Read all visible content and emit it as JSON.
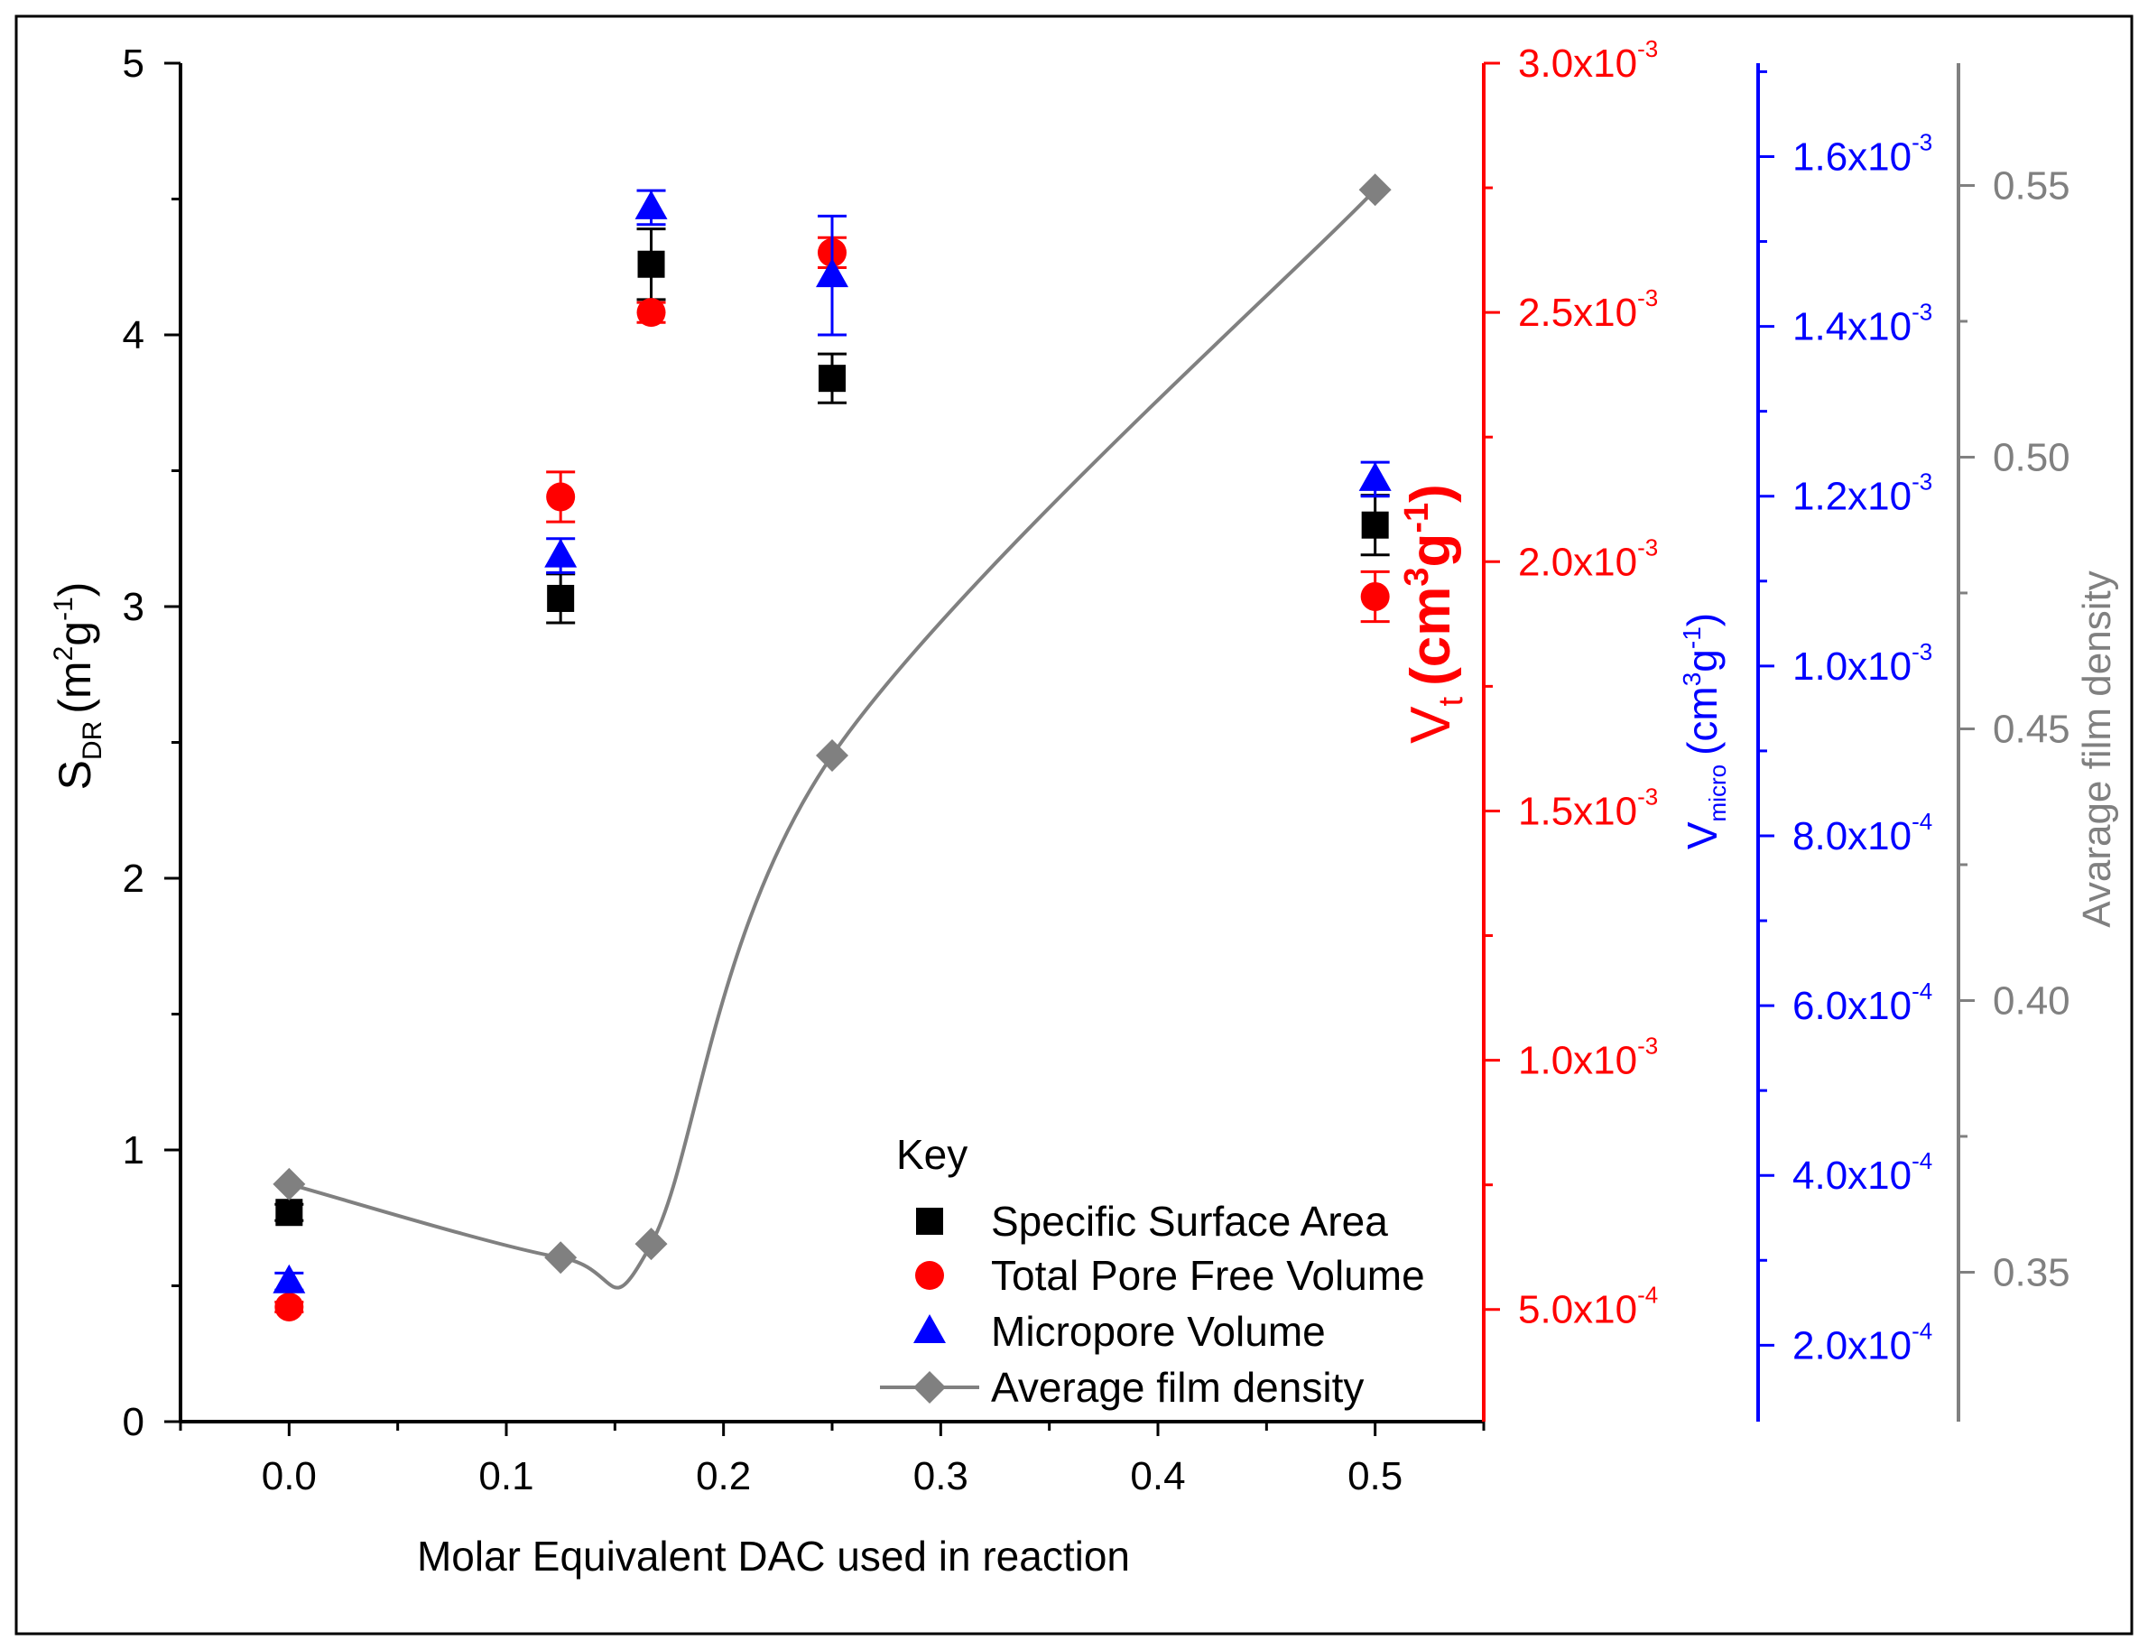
{
  "chart_data": {
    "type": "scatter",
    "title": "",
    "xlabel": "Molar Equivalent DAC used in reaction",
    "xlim": [
      -0.05,
      0.55
    ],
    "x_ticks": [
      0.0,
      0.1,
      0.2,
      0.3,
      0.4,
      0.5
    ],
    "x_tick_labels": [
      "0.0",
      "0.1",
      "0.2",
      "0.3",
      "0.4",
      "0.5"
    ],
    "axes": {
      "left": {
        "label_main": "S",
        "label_sub": "DR",
        "label_paren_open": "(m",
        "label_sup": "2",
        "label_mid": "g",
        "label_sup2": "-1",
        "label_close": ")",
        "ylim": [
          0,
          5
        ],
        "ticks": [
          0,
          1,
          2,
          3,
          4,
          5
        ],
        "tick_labels": [
          "0",
          "1",
          "2",
          "3",
          "4",
          "5"
        ],
        "color": "#000000"
      },
      "right1": {
        "label_main": "V",
        "label_sub": "t",
        "label_paren_open": "(cm",
        "label_sup": "3",
        "label_mid": "g",
        "label_sup2": "-1",
        "label_close": ")",
        "ylim": [
          0.000275,
          0.003
        ],
        "ticks": [
          0.0005,
          0.001,
          0.0015,
          0.002,
          0.0025,
          0.003
        ],
        "tick_labels": [
          {
            "mant": "5.0x10",
            "exp": "-4"
          },
          {
            "mant": "1.0x10",
            "exp": "-3"
          },
          {
            "mant": "1.5x10",
            "exp": "-3"
          },
          {
            "mant": "2.0x10",
            "exp": "-3"
          },
          {
            "mant": "2.5x10",
            "exp": "-3"
          },
          {
            "mant": "3.0x10",
            "exp": "-3"
          }
        ],
        "color": "#ff0000"
      },
      "right2": {
        "label_main": "V",
        "label_sub": "micro",
        "label_paren_open": "(cm",
        "label_sup": "3",
        "label_mid": "g",
        "label_sup2": "-1",
        "label_close": ")",
        "ylim": [
          0.00011,
          0.00171
        ],
        "ticks": [
          0.0002,
          0.0004,
          0.0006,
          0.0008,
          0.001,
          0.0012,
          0.0014,
          0.0016
        ],
        "tick_labels": [
          {
            "mant": "2.0x10",
            "exp": "-4"
          },
          {
            "mant": "4.0x10",
            "exp": "-4"
          },
          {
            "mant": "6.0x10",
            "exp": "-4"
          },
          {
            "mant": "8.0x10",
            "exp": "-4"
          },
          {
            "mant": "1.0x10",
            "exp": "-3"
          },
          {
            "mant": "1.2x10",
            "exp": "-3"
          },
          {
            "mant": "1.4x10",
            "exp": "-3"
          },
          {
            "mant": "1.6x10",
            "exp": "-3"
          }
        ],
        "color": "#0000ff"
      },
      "right3": {
        "label": "Avarage film density",
        "ylim": [
          0.3225,
          0.5725
        ],
        "ticks": [
          0.35,
          0.4,
          0.45,
          0.5,
          0.55
        ],
        "tick_labels": [
          "0.35",
          "0.40",
          "0.45",
          "0.50",
          "0.55"
        ],
        "color": "#808080"
      }
    },
    "series": [
      {
        "name": "Specific Surface Area",
        "axis": "left",
        "marker": "square",
        "color": "#000000",
        "x": [
          0.0,
          0.125,
          0.1667,
          0.25,
          0.5
        ],
        "y": [
          0.77,
          3.03,
          4.26,
          3.84,
          3.3
        ],
        "err": [
          0.03,
          0.09,
          0.13,
          0.09,
          0.11
        ]
      },
      {
        "name": "Total Pore Free Volume",
        "axis": "right1",
        "marker": "circle",
        "color": "#ff0000",
        "x": [
          0.0,
          0.125,
          0.1667,
          0.25,
          0.5
        ],
        "y": [
          0.000505,
          0.00213,
          0.0025,
          0.00262,
          0.00193
        ],
        "err": [
          1e-05,
          5e-05,
          2e-05,
          3e-05,
          5e-05
        ]
      },
      {
        "name": "Micropore Volume",
        "axis": "right2",
        "marker": "triangle",
        "color": "#0000ff",
        "x": [
          0.0,
          0.125,
          0.1667,
          0.25,
          0.5
        ],
        "y": [
          0.000275,
          0.00113,
          0.00154,
          0.00146,
          0.00122
        ],
        "err": [
          1e-05,
          2e-05,
          2e-05,
          7e-05,
          2e-05
        ]
      },
      {
        "name": "Average film density",
        "axis": "right3",
        "marker": "diamond",
        "color": "#808080",
        "line": true,
        "x": [
          0.0,
          0.125,
          0.1667,
          0.25,
          0.5
        ],
        "y": [
          0.3662,
          0.3527,
          0.3552,
          0.4451,
          0.5492
        ]
      }
    ],
    "legend": {
      "title": "Key",
      "position": "bottom-right",
      "entries": [
        "Specific Surface Area",
        "Total Pore Free Volume",
        "Micropore Volume",
        "Average film density"
      ]
    },
    "grid": false
  }
}
